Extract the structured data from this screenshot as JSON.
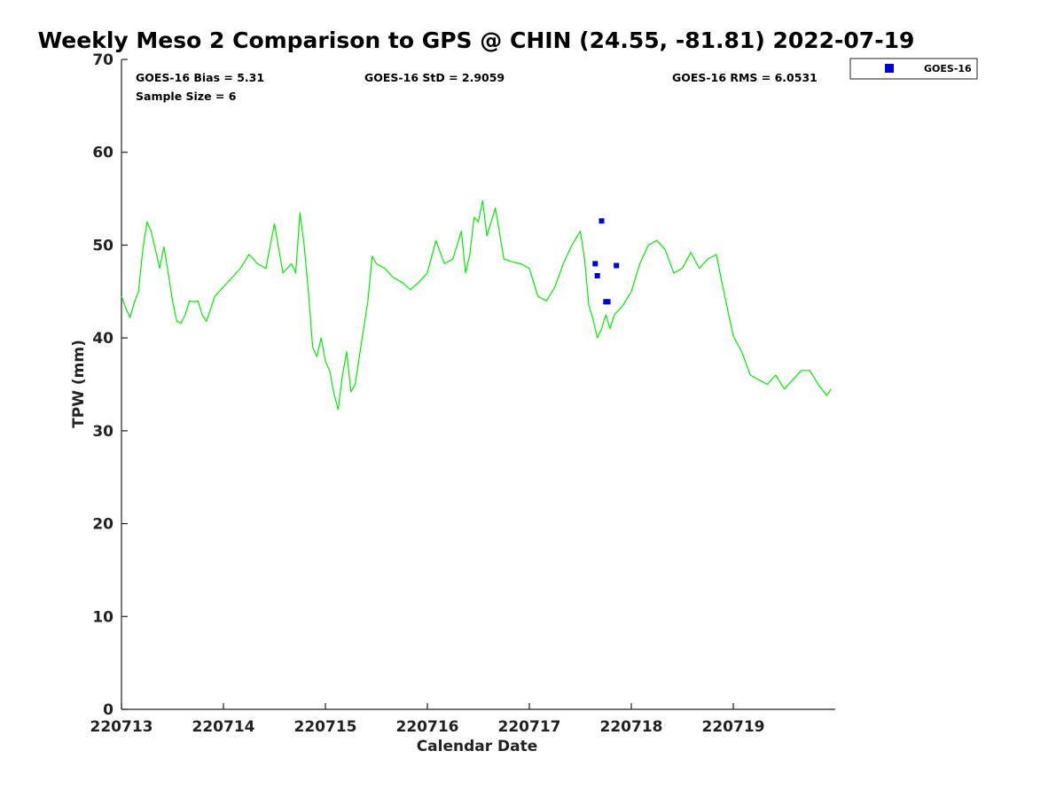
{
  "title": "Weekly Meso 2 Comparison to GPS @ CHIN (24.55, -81.81) 2022-07-19",
  "stats": {
    "bias": "GOES-16 Bias = 5.31",
    "std": "GOES-16 StD = 2.9059",
    "rms": "GOES-16 RMS = 6.0531",
    "sample": "Sample Size = 6"
  },
  "colors": {
    "gps_line": "#00ee00",
    "goes_marker": "#0000dd",
    "axis": "#222222"
  },
  "chart_data": {
    "type": "scatter",
    "title": "Weekly Meso 2 Comparison to GPS @ CHIN (24.55, -81.81) 2022-07-19",
    "xlabel": "Calendar Date",
    "ylabel": "TPW (mm)",
    "x_ticks": [
      "220713",
      "220714",
      "220715",
      "220716",
      "220717",
      "220718",
      "220719"
    ],
    "xlim": [
      "2022-07-13",
      "2022-07-20"
    ],
    "ylim": [
      0,
      70
    ],
    "y_ticks": [
      0,
      10,
      20,
      30,
      40,
      50,
      60,
      70
    ],
    "grid": false,
    "legend": {
      "position": "top-right outside",
      "entries": [
        "GOES-16"
      ]
    },
    "series": [
      {
        "style": "line",
        "x": [
          "2022-07-13 00:00",
          "2022-07-13 01:00",
          "2022-07-13 02:00",
          "2022-07-13 03:00",
          "2022-07-13 04:00",
          "2022-07-13 05:00",
          "2022-07-13 06:00",
          "2022-07-13 07:00",
          "2022-07-13 08:00",
          "2022-07-13 09:00",
          "2022-07-13 10:00",
          "2022-07-13 11:00",
          "2022-07-13 12:00",
          "2022-07-13 13:00",
          "2022-07-13 14:00",
          "2022-07-13 15:00",
          "2022-07-13 16:00",
          "2022-07-13 17:00",
          "2022-07-13 18:00",
          "2022-07-13 19:00",
          "2022-07-13 20:00",
          "2022-07-13 22:00",
          "2022-07-14 00:00",
          "2022-07-14 02:00",
          "2022-07-14 04:00",
          "2022-07-14 06:00",
          "2022-07-14 08:00",
          "2022-07-14 10:00",
          "2022-07-14 12:00",
          "2022-07-14 14:00",
          "2022-07-14 16:00",
          "2022-07-14 17:00",
          "2022-07-14 18:00",
          "2022-07-14 19:00",
          "2022-07-14 20:00",
          "2022-07-14 21:00",
          "2022-07-14 22:00",
          "2022-07-14 23:00",
          "2022-07-15 00:00",
          "2022-07-15 01:00",
          "2022-07-15 02:00",
          "2022-07-15 03:00",
          "2022-07-15 04:00",
          "2022-07-15 05:00",
          "2022-07-15 06:00",
          "2022-07-15 07:00",
          "2022-07-15 08:00",
          "2022-07-15 09:00",
          "2022-07-15 10:00",
          "2022-07-15 11:00",
          "2022-07-15 12:00",
          "2022-07-15 14:00",
          "2022-07-15 16:00",
          "2022-07-15 18:00",
          "2022-07-15 20:00",
          "2022-07-15 22:00",
          "2022-07-16 00:00",
          "2022-07-16 02:00",
          "2022-07-16 04:00",
          "2022-07-16 06:00",
          "2022-07-16 07:00",
          "2022-07-16 08:00",
          "2022-07-16 09:00",
          "2022-07-16 10:00",
          "2022-07-16 11:00",
          "2022-07-16 12:00",
          "2022-07-16 13:00",
          "2022-07-16 14:00",
          "2022-07-16 16:00",
          "2022-07-16 18:00",
          "2022-07-16 20:00",
          "2022-07-16 22:00",
          "2022-07-17 00:00",
          "2022-07-17 02:00",
          "2022-07-17 04:00",
          "2022-07-17 06:00",
          "2022-07-17 08:00",
          "2022-07-17 10:00",
          "2022-07-17 12:00",
          "2022-07-17 13:00",
          "2022-07-17 14:00",
          "2022-07-17 15:00",
          "2022-07-17 16:00",
          "2022-07-17 17:00",
          "2022-07-17 18:00",
          "2022-07-17 19:00",
          "2022-07-17 20:00",
          "2022-07-17 22:00",
          "2022-07-18 00:00",
          "2022-07-18 02:00",
          "2022-07-18 04:00",
          "2022-07-18 06:00",
          "2022-07-18 08:00",
          "2022-07-18 10:00",
          "2022-07-18 12:00",
          "2022-07-18 14:00",
          "2022-07-18 16:00",
          "2022-07-18 18:00",
          "2022-07-18 20:00",
          "2022-07-18 22:00",
          "2022-07-19 00:00",
          "2022-07-19 02:00",
          "2022-07-19 04:00",
          "2022-07-19 06:00",
          "2022-07-19 08:00",
          "2022-07-19 10:00",
          "2022-07-19 12:00",
          "2022-07-19 14:00",
          "2022-07-19 16:00",
          "2022-07-19 18:00",
          "2022-07-19 20:00",
          "2022-07-19 22:00",
          "2022-07-19 23:00"
        ],
        "y": [
          44.5,
          43.2,
          42.2,
          43.8,
          45.0,
          49.5,
          52.5,
          51.5,
          49.5,
          47.5,
          49.8,
          47.0,
          44.0,
          41.8,
          41.6,
          42.5,
          44.0,
          43.9,
          44.0,
          42.5,
          41.8,
          44.5,
          45.5,
          46.5,
          47.5,
          49.0,
          48.0,
          47.5,
          52.3,
          47.0,
          48.0,
          47.0,
          53.5,
          50.0,
          45.0,
          39.0,
          38.0,
          40.0,
          37.5,
          36.5,
          34.0,
          32.3,
          36.0,
          38.5,
          34.2,
          35.0,
          38.0,
          41.0,
          44.0,
          48.8,
          48.0,
          47.5,
          46.5,
          46.0,
          45.2,
          46.0,
          47.0,
          50.5,
          48.0,
          48.5,
          50.0,
          51.5,
          47.0,
          49.0,
          53.0,
          52.5,
          54.8,
          51.0,
          54.0,
          48.5,
          48.2,
          48.0,
          47.5,
          44.5,
          44.0,
          45.5,
          48.0,
          50.0,
          51.5,
          48.5,
          43.5,
          42.0,
          40.0,
          41.0,
          42.5,
          41.0,
          42.5,
          43.5,
          45.0,
          48.0,
          50.0,
          50.5,
          49.5,
          47.0,
          47.5,
          49.2,
          47.5,
          48.5,
          49.0,
          44.5,
          40.2,
          38.5,
          36.0,
          35.5,
          35.0,
          36.0,
          34.5,
          35.5,
          36.5,
          36.5,
          35.0,
          33.8,
          34.5
        ]
      },
      {
        "name": "GOES-16",
        "style": "scatter",
        "x": [
          "2022-07-17 15:30",
          "2022-07-17 16:00",
          "2022-07-17 17:00",
          "2022-07-17 18:00",
          "2022-07-17 18:30",
          "2022-07-17 20:30"
        ],
        "y": [
          48.0,
          46.7,
          52.6,
          43.9,
          43.9,
          47.8
        ]
      }
    ]
  }
}
